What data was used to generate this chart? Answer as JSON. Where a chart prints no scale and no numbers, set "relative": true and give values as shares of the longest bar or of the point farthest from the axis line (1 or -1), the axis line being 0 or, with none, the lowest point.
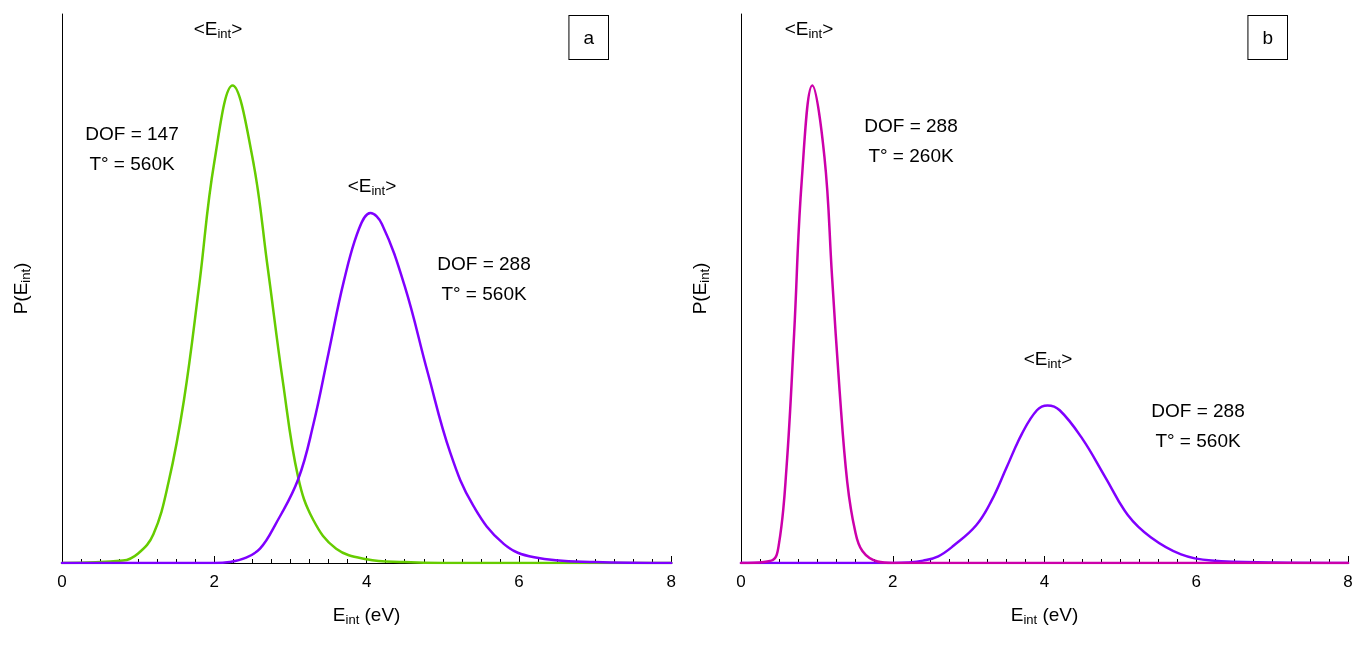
{
  "chart_data": [
    {
      "type": "line",
      "title": "a",
      "xlabel": "E$_{int}$ (eV)",
      "ylabel": "P(E$_{int}$)",
      "relative": true,
      "xlim": [
        0,
        8
      ],
      "xticks": [
        0,
        2,
        4,
        6,
        8
      ],
      "marker": "none",
      "line_style": "solid",
      "series": [
        {
          "color": "#66cc00",
          "x": [
            0,
            0.8,
            1.0,
            1.2,
            1.4,
            1.6,
            1.8,
            2.0,
            2.24,
            2.5,
            2.7,
            2.9,
            3.1,
            3.3,
            3.6,
            4.0,
            4.5,
            5,
            6,
            8
          ],
          "values": [
            0,
            0.005,
            0.02,
            0.06,
            0.17,
            0.34,
            0.58,
            0.84,
            1,
            0.85,
            0.62,
            0.38,
            0.18,
            0.09,
            0.03,
            0.008,
            0.002,
            0,
            0,
            0
          ]
        },
        {
          "color": "#7f00ff",
          "x": [
            0,
            2.0,
            2.2,
            2.4,
            2.6,
            2.8,
            3.1,
            3.3,
            3.5,
            3.7,
            3.9,
            4.05,
            4.2,
            4.5,
            4.8,
            5.1,
            5.4,
            5.8,
            6.2,
            7,
            8
          ],
          "values": [
            0,
            0,
            0.002,
            0.01,
            0.03,
            0.08,
            0.175,
            0.29,
            0.44,
            0.59,
            0.7,
            0.733,
            0.71,
            0.58,
            0.4,
            0.23,
            0.12,
            0.04,
            0.012,
            0.002,
            0
          ]
        }
      ],
      "annotations": [
        "<E$_{int}$>",
        "DOF = 147\nT° = 560K",
        "<E$_{int}$>",
        "DOF = 288\nT° = 560K"
      ]
    },
    {
      "type": "line",
      "title": "b",
      "xlabel": "E$_{int}$ (eV)",
      "ylabel": "P(E$_{int}$)",
      "relative": true,
      "xlim": [
        0,
        8
      ],
      "xticks": [
        0,
        2,
        4,
        6,
        8
      ],
      "marker": "none",
      "line_style": "solid",
      "series": [
        {
          "color": "#7f00ff",
          "x": [
            0,
            2.0,
            2.2,
            2.4,
            2.6,
            2.8,
            3.1,
            3.3,
            3.5,
            3.7,
            3.9,
            4.04,
            4.2,
            4.5,
            4.8,
            5.1,
            5.4,
            5.8,
            6.2,
            7,
            8
          ],
          "values": [
            0,
            0,
            0.001,
            0.005,
            0.014,
            0.036,
            0.079,
            0.13,
            0.2,
            0.27,
            0.32,
            0.33,
            0.32,
            0.26,
            0.18,
            0.1,
            0.054,
            0.018,
            0.005,
            0.001,
            0
          ]
        },
        {
          "color": "#cc00aa",
          "x": [
            0,
            0.4,
            0.5,
            0.6,
            0.7,
            0.8,
            0.94,
            1.1,
            1.2,
            1.3,
            1.4,
            1.5,
            1.6,
            1.8,
            2,
            8
          ],
          "values": [
            0,
            0.005,
            0.04,
            0.2,
            0.48,
            0.8,
            1,
            0.85,
            0.6,
            0.36,
            0.17,
            0.07,
            0.025,
            0.003,
            0,
            0
          ]
        }
      ],
      "annotations": [
        "<E$_{int}$>",
        "DOF = 288\nT° = 260K",
        "<E$_{int}$>",
        "DOF = 288\nT° = 560K"
      ]
    }
  ]
}
